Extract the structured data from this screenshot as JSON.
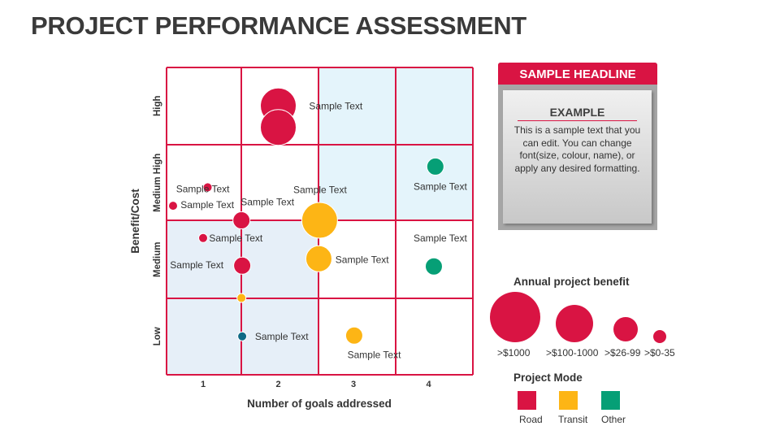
{
  "title": "PROJECT PERFORMANCE ASSESSMENT",
  "panel": {
    "headline": "SAMPLE HEADLINE",
    "subhead": "EXAMPLE",
    "body": "This is a sample text that you can edit. You can change font(size, colour, name), or apply any desired formatting."
  },
  "legend": {
    "size_title": "Annual project benefit",
    "sizes": [
      ">$1000",
      ">$100-1000",
      ">$26-99",
      ">$0-35"
    ],
    "mode_title": "Project Mode",
    "modes": [
      {
        "label": "Road",
        "color": "#d91443"
      },
      {
        "label": "Transit",
        "color": "#fdb515"
      },
      {
        "label": "Other",
        "color": "#069f76"
      }
    ]
  },
  "chart_data": {
    "type": "scatter",
    "xlabel": "Number of goals addressed",
    "ylabel": "Benefit/Cost",
    "x_ticks": [
      "1",
      "2",
      "3",
      "4"
    ],
    "y_ticks": [
      "Low",
      "Medium",
      "Medium High",
      "High"
    ],
    "grid": true,
    "colors": {
      "Road": "#d91443",
      "Transit": "#fdb515",
      "Other": "#069f76",
      "Unclassified": "#0e6a86"
    },
    "points": [
      {
        "x": 2.0,
        "y": 3.5,
        "mode": "Road",
        "size": ">$1000"
      },
      {
        "x": 2.0,
        "y": 3.22,
        "mode": "Road",
        "size": ">$1000"
      },
      {
        "x": 4.09,
        "y": 2.71,
        "mode": "Other",
        "size": ">$26-99"
      },
      {
        "x": 1.06,
        "y": 2.44,
        "mode": "Road",
        "size": ">$0-35"
      },
      {
        "x": 0.6,
        "y": 2.2,
        "mode": "Road",
        "size": ">$0-35"
      },
      {
        "x": 1.51,
        "y": 2.01,
        "mode": "Road",
        "size": ">$26-99"
      },
      {
        "x": 2.55,
        "y": 2.01,
        "mode": "Transit",
        "size": ">$1000"
      },
      {
        "x": 1.0,
        "y": 1.78,
        "mode": "Road",
        "size": ">$0-35"
      },
      {
        "x": 1.52,
        "y": 1.42,
        "mode": "Road",
        "size": ">$26-99"
      },
      {
        "x": 2.54,
        "y": 1.51,
        "mode": "Transit",
        "size": ">$100-1000"
      },
      {
        "x": 4.07,
        "y": 1.41,
        "mode": "Other",
        "size": ">$26-99"
      },
      {
        "x": 1.51,
        "y": 1.0,
        "mode": "Transit",
        "size": ">$0-35"
      },
      {
        "x": 1.52,
        "y": 0.5,
        "mode": "Unclassified",
        "size": ">$0-35"
      },
      {
        "x": 3.01,
        "y": 0.51,
        "mode": "Transit",
        "size": ">$26-99"
      }
    ],
    "annotations": [
      {
        "text": "Sample Text",
        "x": 2.41,
        "y": 3.5
      },
      {
        "text": "Sample Text",
        "x": 0.64,
        "y": 2.42
      },
      {
        "text": "Sample Text",
        "x": 0.7,
        "y": 2.21
      },
      {
        "text": "Sample Text",
        "x": 1.5,
        "y": 2.25
      },
      {
        "text": "Sample Text",
        "x": 2.2,
        "y": 2.41
      },
      {
        "text": "Sample Text",
        "x": 3.8,
        "y": 2.45
      },
      {
        "text": "Sample Text",
        "x": 1.08,
        "y": 1.78
      },
      {
        "text": "Sample Text",
        "x": 0.56,
        "y": 1.43
      },
      {
        "text": "Sample Text",
        "x": 2.76,
        "y": 1.5
      },
      {
        "text": "Sample Text",
        "x": 3.8,
        "y": 1.78
      },
      {
        "text": "Sample Text",
        "x": 1.69,
        "y": 0.5
      },
      {
        "text": "Sample Text",
        "x": 2.92,
        "y": 0.26
      }
    ]
  }
}
